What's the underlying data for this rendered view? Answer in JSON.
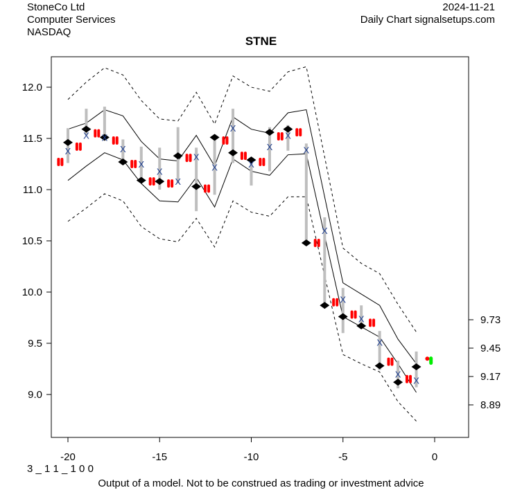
{
  "header": {
    "company": "StoneCo Ltd",
    "sector": "Computer Services",
    "exchange": "NASDAQ",
    "date": "2024-11-21",
    "source": "Daily Chart signalsetups.com"
  },
  "footer": {
    "code": "3 _ 1 1 _ 1 0 0",
    "disclaimer": "Output of a model. Not to be construed as trading or investment advice"
  },
  "chart_data": {
    "type": "line",
    "title": "STNE",
    "xlabel": "",
    "ylabel": "",
    "xlim": [
      -21,
      1.8
    ],
    "ylim": [
      8.6,
      12.3
    ],
    "grid": false,
    "x_ticks": [
      -20,
      -15,
      -10,
      -5,
      0
    ],
    "x_tick_labels": [
      "-20",
      "-15",
      "-10",
      "-5",
      "0"
    ],
    "y_ticks": [
      9.0,
      9.5,
      10.0,
      10.5,
      11.0,
      11.5,
      12.0
    ],
    "y_tick_labels": [
      "9.0",
      "9.5",
      "10.0",
      "10.5",
      "11.0",
      "11.5",
      "12.0"
    ],
    "right_ticks": [
      9.73,
      9.45,
      9.17,
      8.89
    ],
    "right_tick_labels": [
      "9.73",
      "9.45",
      "9.17",
      "8.89"
    ],
    "x": [
      -20,
      -19,
      -18,
      -17,
      -16,
      -15,
      -14,
      -13,
      -12,
      -11,
      -10,
      -9,
      -8,
      -7,
      -6,
      -5,
      -4,
      -3,
      -2,
      -1
    ],
    "bands": {
      "upper_outer": [
        11.88,
        12.05,
        12.19,
        12.12,
        11.87,
        11.69,
        11.67,
        11.95,
        11.64,
        12.11,
        12.0,
        11.96,
        12.15,
        12.2,
        11.32,
        10.43,
        10.28,
        10.18,
        9.88,
        9.61
      ],
      "upper_inner": [
        11.59,
        11.65,
        11.78,
        11.72,
        11.47,
        11.3,
        11.28,
        11.53,
        11.23,
        11.71,
        11.59,
        11.55,
        11.75,
        11.78,
        10.93,
        10.09,
        9.98,
        9.87,
        9.54,
        9.3
      ],
      "lower_inner": [
        11.09,
        11.23,
        11.36,
        11.29,
        11.06,
        10.89,
        10.88,
        11.12,
        10.83,
        11.3,
        11.18,
        11.14,
        11.34,
        11.35,
        10.55,
        9.76,
        9.66,
        9.56,
        9.3,
        9.02
      ],
      "lower_outer": [
        10.69,
        10.82,
        10.96,
        10.89,
        10.64,
        10.52,
        10.49,
        10.72,
        10.44,
        10.89,
        10.78,
        10.74,
        10.93,
        10.93,
        10.16,
        9.39,
        9.3,
        9.22,
        8.93,
        8.74
      ]
    },
    "series": [
      {
        "name": "range_high",
        "values": [
          11.6,
          11.79,
          11.81,
          11.49,
          11.42,
          11.41,
          11.61,
          11.41,
          11.49,
          11.79,
          11.29,
          11.61,
          11.63,
          11.45,
          10.73,
          10.04,
          9.87,
          9.62,
          9.33,
          9.42
        ]
      },
      {
        "name": "range_low",
        "values": [
          11.26,
          11.53,
          11.49,
          11.26,
          11.08,
          11.0,
          11.06,
          10.79,
          10.95,
          11.26,
          11.04,
          11.18,
          11.38,
          10.47,
          9.86,
          9.6,
          9.65,
          9.24,
          9.06,
          9.07
        ]
      },
      {
        "name": "diamond",
        "values": [
          11.46,
          11.59,
          11.51,
          11.27,
          11.09,
          11.08,
          11.33,
          11.03,
          11.51,
          11.36,
          11.29,
          11.56,
          11.59,
          10.48,
          9.87,
          9.76,
          9.67,
          9.28,
          9.12,
          9.27
        ]
      },
      {
        "name": "x_marker",
        "values": [
          11.38,
          11.53,
          11.51,
          11.4,
          11.25,
          11.18,
          11.08,
          11.32,
          11.22,
          11.6,
          11.25,
          11.42,
          11.53,
          11.39,
          10.6,
          9.93,
          9.74,
          9.51,
          9.2,
          9.14
        ]
      },
      {
        "name": "red_marker",
        "values": [
          11.27,
          11.42,
          11.55,
          11.48,
          11.25,
          11.08,
          11.06,
          11.31,
          11.01,
          11.48,
          11.33,
          11.27,
          11.52,
          11.56,
          10.48,
          9.9,
          9.78,
          9.7,
          9.32,
          9.15
        ]
      }
    ],
    "forecast": {
      "red_dot": [
        -0.4,
        9.35
      ],
      "green_marker": [
        -0.2,
        9.33
      ]
    },
    "colors": {
      "band": "#000000",
      "range": "#bebebe",
      "diamond": "#000000",
      "x_marker": "#1f3f8f",
      "red": "#ff0000",
      "green": "#00ee00"
    }
  }
}
